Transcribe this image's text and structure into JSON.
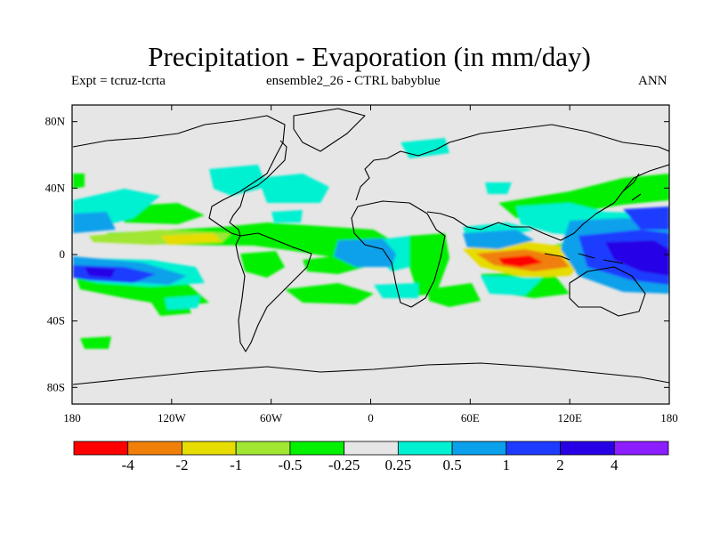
{
  "header": {
    "title": "Precipitation - Evaporation (in mm/day)",
    "expt": "Expt = tcruz-tcrta",
    "ensemble": "ensemble2_26 - CTRL babyblue",
    "season": "ANN"
  },
  "map": {
    "lon_range": [
      -180,
      180
    ],
    "lat_range": [
      -90,
      90
    ],
    "x_ticks": [
      "180",
      "120W",
      "60W",
      "0",
      "60E",
      "120E",
      "180"
    ],
    "y_ticks": [
      "80N",
      "40N",
      "0",
      "40S",
      "80S"
    ],
    "background": "#e6e6e6"
  },
  "colorbar": {
    "colors": [
      "#ff0000",
      "#f0800a",
      "#e6dc00",
      "#a0e632",
      "#00f000",
      "#e6e6e6",
      "#00f0d2",
      "#0aa0eb",
      "#1e3cff",
      "#2800e6",
      "#8c1eff"
    ],
    "labels": [
      "-4",
      "-2",
      "-1",
      "-0.5",
      "-0.25",
      "0.25",
      "0.5",
      "1",
      "2",
      "4"
    ]
  }
}
